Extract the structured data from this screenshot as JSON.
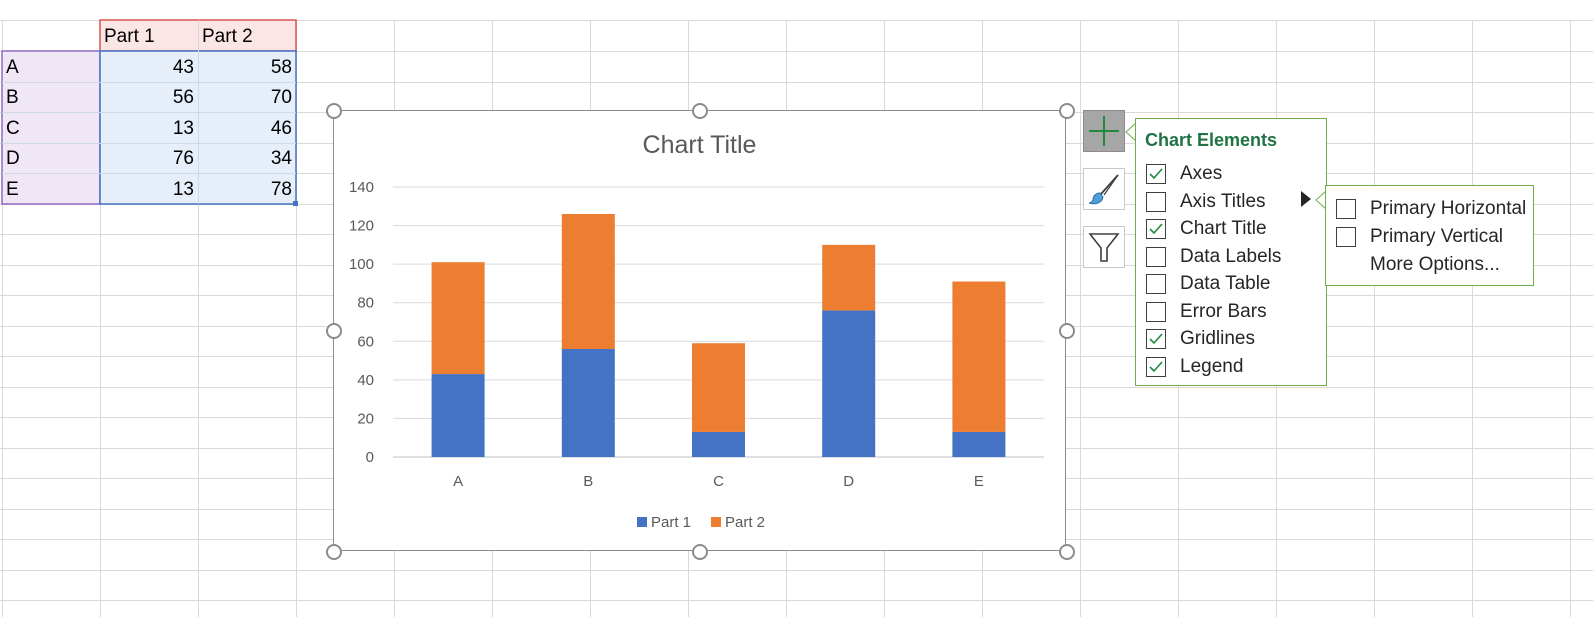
{
  "sheet": {
    "headers": [
      "Part 1",
      "Part 2"
    ],
    "rows": [
      {
        "label": "A",
        "part1": "43",
        "part2": "58"
      },
      {
        "label": "B",
        "part1": "56",
        "part2": "70"
      },
      {
        "label": "C",
        "part1": "13",
        "part2": "46"
      },
      {
        "label": "D",
        "part1": "76",
        "part2": "34"
      },
      {
        "label": "E",
        "part1": "13",
        "part2": "78"
      }
    ]
  },
  "chart_data": {
    "type": "bar",
    "stacked": true,
    "title": "Chart Title",
    "categories": [
      "A",
      "B",
      "C",
      "D",
      "E"
    ],
    "series": [
      {
        "name": "Part 1",
        "values": [
          43,
          56,
          13,
          76,
          13
        ],
        "color": "#4472c4"
      },
      {
        "name": "Part 2",
        "values": [
          58,
          70,
          46,
          34,
          78
        ],
        "color": "#ed7d31"
      }
    ],
    "ylim": [
      0,
      140
    ],
    "yticks": [
      0,
      20,
      40,
      60,
      80,
      100,
      120,
      140
    ],
    "grid": true,
    "legend": "bottom"
  },
  "chart_elements": {
    "title": "Chart Elements",
    "options": [
      {
        "label": "Axes",
        "checked": true
      },
      {
        "label": "Axis Titles",
        "checked": false
      },
      {
        "label": "Chart Title",
        "checked": true
      },
      {
        "label": "Data Labels",
        "checked": false
      },
      {
        "label": "Data Table",
        "checked": false
      },
      {
        "label": "Error Bars",
        "checked": false
      },
      {
        "label": "Gridlines",
        "checked": true
      },
      {
        "label": "Legend",
        "checked": true
      }
    ]
  },
  "axis_titles_submenu": {
    "primary_horizontal": "Primary Horizontal",
    "primary_vertical": "Primary Vertical",
    "more_options": "More Options..."
  },
  "colors": {
    "accent": "#217346",
    "pane_border": "#70ad47",
    "part1": "#4472c4",
    "part2": "#ed7d31"
  },
  "icons": {
    "elements_button": "plus-icon",
    "styles_button": "paintbrush-icon",
    "filters_button": "funnel-icon",
    "submenu_arrow": "triangle-right-icon"
  }
}
